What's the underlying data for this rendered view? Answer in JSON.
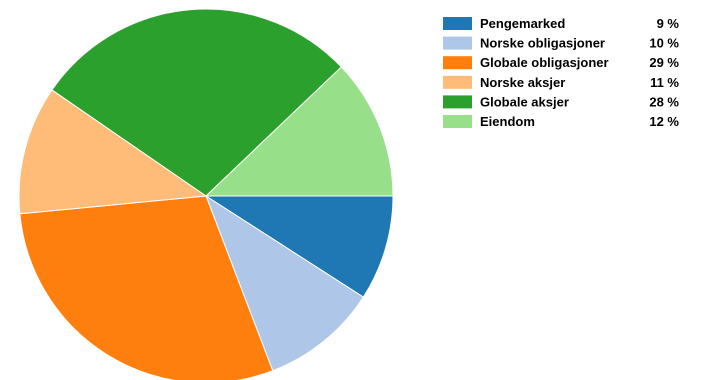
{
  "chart_data": {
    "type": "pie",
    "title": "",
    "legend_position": "top-right",
    "start_direction": "east",
    "rotation": "clockwise",
    "slices": [
      {
        "label": "Pengemarked",
        "value": 9,
        "value_label": "9 %",
        "color": "#1f77b4"
      },
      {
        "label": "Norske obligasjoner",
        "value": 10,
        "value_label": "10 %",
        "color": "#aec7e8"
      },
      {
        "label": "Globale obligasjoner",
        "value": 29,
        "value_label": "29 %",
        "color": "#ff7f0e"
      },
      {
        "label": "Norske aksjer",
        "value": 11,
        "value_label": "11 %",
        "color": "#ffbb78"
      },
      {
        "label": "Globale aksjer",
        "value": 28,
        "value_label": "28 %",
        "color": "#2ca02c"
      },
      {
        "label": "Eiendom",
        "value": 12,
        "value_label": "12 %",
        "color": "#98df8a"
      }
    ]
  }
}
